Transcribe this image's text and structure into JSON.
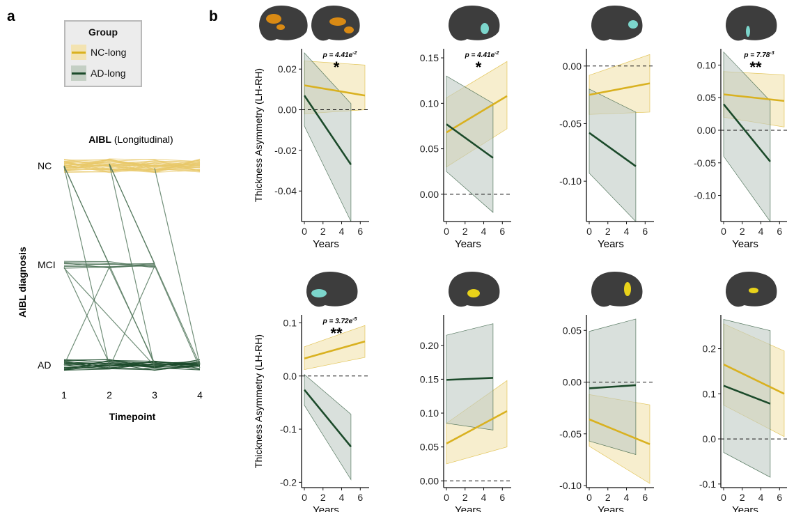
{
  "figure": {
    "panel_a_letter": "a",
    "panel_b_letter": "b"
  },
  "legend": {
    "title": "Group",
    "items": [
      {
        "label": "NC-long",
        "color": "#d9b120",
        "band": "#f3e3b1"
      },
      {
        "label": "AD-long",
        "color": "#1b4a2a",
        "band": "#c4cfc4"
      }
    ]
  },
  "colors": {
    "nc_line": "#d9b120",
    "nc_band": "#f2e2ae",
    "ad_line": "#1b4a2a",
    "ad_band": "#bfcbc4",
    "spaghetti_nc": "#e8c86a",
    "spaghetti_ad": "#4d7358",
    "brain": "#3d3d3d",
    "roi_orange": "#d98a14",
    "roi_cyan": "#7cd6cc",
    "roi_yellow": "#e8d21a"
  },
  "chart_data": [
    {
      "id": "a",
      "type": "line",
      "title": "AIBL",
      "title_suffix": "(Longitudinal)",
      "xlabel": "Timepoint",
      "ylabel": "AIBL diagnosis",
      "x_ticks": [
        "1",
        "2",
        "3",
        "4"
      ],
      "y_categories": [
        "NC",
        "MCI",
        "AD"
      ],
      "transitions": [
        {
          "from": [
            1,
            "NC"
          ],
          "to": [
            2,
            "AD"
          ]
        },
        {
          "from": [
            1,
            "NC"
          ],
          "to": [
            2,
            "MCI"
          ]
        },
        {
          "from": [
            1,
            "NC"
          ],
          "to": [
            3,
            "AD"
          ]
        },
        {
          "from": [
            2,
            "NC"
          ],
          "to": [
            3,
            "AD"
          ]
        },
        {
          "from": [
            2,
            "NC"
          ],
          "to": [
            3,
            "MCI"
          ]
        },
        {
          "from": [
            2,
            "NC"
          ],
          "to": [
            4,
            "AD"
          ]
        },
        {
          "from": [
            3,
            "NC"
          ],
          "to": [
            4,
            "AD"
          ]
        },
        {
          "from": [
            1,
            "MCI"
          ],
          "to": [
            2,
            "AD"
          ]
        },
        {
          "from": [
            1,
            "MCI"
          ],
          "to": [
            3,
            "AD"
          ]
        },
        {
          "from": [
            1,
            "MCI"
          ],
          "to": [
            3,
            "MCI"
          ]
        },
        {
          "from": [
            2,
            "MCI"
          ],
          "to": [
            3,
            "AD"
          ]
        },
        {
          "from": [
            3,
            "MCI"
          ],
          "to": [
            4,
            "AD"
          ]
        },
        {
          "from": [
            1,
            "AD"
          ],
          "to": [
            2,
            "MCI"
          ]
        },
        {
          "from": [
            2,
            "AD"
          ],
          "to": [
            3,
            "MCI"
          ]
        }
      ]
    },
    {
      "id": "b1",
      "type": "line",
      "row": 0,
      "col": 0,
      "region": "orange",
      "ylabel": "Thickness Asymmetry (LH-RH)",
      "xlabel": "Years",
      "ylim": [
        -0.055,
        0.03
      ],
      "yticks": [
        -0.04,
        -0.02,
        0.0,
        0.02
      ],
      "ytick_labels": [
        "-0.04",
        "-0.02",
        "0.00",
        "0.02"
      ],
      "xlim": [
        -0.3,
        6.8
      ],
      "xticks": [
        0,
        2,
        4,
        6
      ],
      "pvalue": "p = 4.41e",
      "pvalue_exp": "-2",
      "stars": "*",
      "series": [
        {
          "group": "NC-long",
          "x": [
            0,
            6.5
          ],
          "y": [
            0.012,
            0.007
          ],
          "lower": [
            -0.002,
            0.0
          ],
          "upper": [
            0.024,
            0.022
          ]
        },
        {
          "group": "AD-long",
          "x": [
            0,
            5
          ],
          "y": [
            0.007,
            -0.027
          ],
          "lower": [
            -0.008,
            -0.055
          ],
          "upper": [
            0.028,
            0.003
          ]
        }
      ]
    },
    {
      "id": "b2",
      "type": "line",
      "row": 0,
      "col": 1,
      "region": "cyan",
      "ylabel": "",
      "xlabel": "Years",
      "ylim": [
        -0.03,
        0.16
      ],
      "yticks": [
        0.0,
        0.05,
        0.1,
        0.15
      ],
      "ytick_labels": [
        "0.00",
        "0.05",
        "0.10",
        "0.15"
      ],
      "xlim": [
        -0.3,
        6.8
      ],
      "xticks": [
        0,
        2,
        4,
        6
      ],
      "pvalue": "p = 4.41e",
      "pvalue_exp": "-2",
      "stars": "*",
      "series": [
        {
          "group": "NC-long",
          "x": [
            0,
            6.5
          ],
          "y": [
            0.068,
            0.108
          ],
          "lower": [
            0.03,
            0.072
          ],
          "upper": [
            0.106,
            0.146
          ]
        },
        {
          "group": "AD-long",
          "x": [
            0,
            5
          ],
          "y": [
            0.077,
            0.04
          ],
          "lower": [
            0.025,
            -0.02
          ],
          "upper": [
            0.13,
            0.1
          ]
        }
      ]
    },
    {
      "id": "b3",
      "type": "line",
      "row": 0,
      "col": 2,
      "region": "cyan",
      "ylabel": "",
      "xlabel": "Years",
      "ylim": [
        -0.135,
        0.015
      ],
      "yticks": [
        -0.1,
        -0.05,
        0.0
      ],
      "ytick_labels": [
        "-0.10",
        "-0.05",
        "0.00"
      ],
      "xlim": [
        -0.3,
        6.8
      ],
      "xticks": [
        0,
        2,
        4,
        6
      ],
      "pvalue": "",
      "pvalue_exp": "",
      "stars": "",
      "series": [
        {
          "group": "NC-long",
          "x": [
            0,
            6.5
          ],
          "y": [
            -0.025,
            -0.015
          ],
          "lower": [
            -0.042,
            -0.04
          ],
          "upper": [
            -0.008,
            0.01
          ]
        },
        {
          "group": "AD-long",
          "x": [
            0,
            5
          ],
          "y": [
            -0.058,
            -0.087
          ],
          "lower": [
            -0.093,
            -0.135
          ],
          "upper": [
            -0.02,
            -0.04
          ]
        }
      ]
    },
    {
      "id": "b4",
      "type": "line",
      "row": 0,
      "col": 3,
      "region": "cyan",
      "ylabel": "",
      "xlabel": "Years",
      "ylim": [
        -0.14,
        0.125
      ],
      "yticks": [
        -0.1,
        -0.05,
        0.0,
        0.05,
        0.1
      ],
      "ytick_labels": [
        "-0.10",
        "-0.05",
        "0.00",
        "0.05",
        "0.10"
      ],
      "xlim": [
        -0.3,
        6.8
      ],
      "xticks": [
        0,
        2,
        4,
        6
      ],
      "pvalue": "p = 7.78",
      "pvalue_exp": "-3",
      "stars": "**",
      "series": [
        {
          "group": "NC-long",
          "x": [
            0,
            6.5
          ],
          "y": [
            0.055,
            0.045
          ],
          "lower": [
            0.02,
            0.005
          ],
          "upper": [
            0.09,
            0.085
          ]
        },
        {
          "group": "AD-long",
          "x": [
            0,
            5
          ],
          "y": [
            0.04,
            -0.048
          ],
          "lower": [
            -0.04,
            -0.14
          ],
          "upper": [
            0.12,
            0.045
          ]
        }
      ]
    },
    {
      "id": "b5",
      "type": "line",
      "row": 1,
      "col": 0,
      "region": "cyan",
      "ylabel": "Thickness Asymmetry (LH-RH)",
      "xlabel": "Years",
      "ylim": [
        -0.21,
        0.115
      ],
      "yticks": [
        -0.2,
        -0.1,
        0.0,
        0.1
      ],
      "ytick_labels": [
        "-0.2",
        "-0.1",
        "0.0",
        "0.1"
      ],
      "xlim": [
        -0.3,
        6.8
      ],
      "xticks": [
        0,
        2,
        4,
        6
      ],
      "pvalue": "p = 3.72e",
      "pvalue_exp": "-5",
      "stars": "**",
      "series": [
        {
          "group": "NC-long",
          "x": [
            0,
            6.5
          ],
          "y": [
            0.033,
            0.065
          ],
          "lower": [
            0.012,
            0.035
          ],
          "upper": [
            0.055,
            0.095
          ]
        },
        {
          "group": "AD-long",
          "x": [
            0,
            5
          ],
          "y": [
            -0.026,
            -0.133
          ],
          "lower": [
            -0.055,
            -0.195
          ],
          "upper": [
            0.003,
            -0.072
          ]
        }
      ]
    },
    {
      "id": "b6",
      "type": "line",
      "row": 1,
      "col": 1,
      "region": "yellow",
      "ylabel": "",
      "xlabel": "Years",
      "ylim": [
        -0.01,
        0.245
      ],
      "yticks": [
        0.0,
        0.05,
        0.1,
        0.15,
        0.2
      ],
      "ytick_labels": [
        "0.00",
        "0.05",
        "0.10",
        "0.15",
        "0.20"
      ],
      "xlim": [
        -0.3,
        6.8
      ],
      "xticks": [
        0,
        2,
        4,
        6
      ],
      "pvalue": "",
      "pvalue_exp": "",
      "stars": "",
      "series": [
        {
          "group": "NC-long",
          "x": [
            0,
            6.5
          ],
          "y": [
            0.055,
            0.103
          ],
          "lower": [
            0.025,
            0.05
          ],
          "upper": [
            0.085,
            0.148
          ]
        },
        {
          "group": "AD-long",
          "x": [
            0,
            5
          ],
          "y": [
            0.149,
            0.152
          ],
          "lower": [
            0.085,
            0.075
          ],
          "upper": [
            0.215,
            0.232
          ]
        }
      ]
    },
    {
      "id": "b7",
      "type": "line",
      "row": 1,
      "col": 2,
      "region": "yellow",
      "ylabel": "",
      "xlabel": "Years",
      "ylim": [
        -0.102,
        0.065
      ],
      "yticks": [
        -0.1,
        -0.05,
        0.0,
        0.05
      ],
      "ytick_labels": [
        "-0.10",
        "-0.05",
        "0.00",
        "0.05"
      ],
      "xlim": [
        -0.3,
        6.8
      ],
      "xticks": [
        0,
        2,
        4,
        6
      ],
      "pvalue": "",
      "pvalue_exp": "",
      "stars": "",
      "series": [
        {
          "group": "NC-long",
          "x": [
            0,
            6.5
          ],
          "y": [
            -0.036,
            -0.06
          ],
          "lower": [
            -0.062,
            -0.098
          ],
          "upper": [
            -0.012,
            -0.022
          ]
        },
        {
          "group": "AD-long",
          "x": [
            0,
            5
          ],
          "y": [
            -0.006,
            -0.003
          ],
          "lower": [
            -0.057,
            -0.07
          ],
          "upper": [
            0.049,
            0.061
          ]
        }
      ]
    },
    {
      "id": "b8",
      "type": "line",
      "row": 1,
      "col": 3,
      "region": "yellow",
      "ylabel": "",
      "xlabel": "Years",
      "ylim": [
        -0.108,
        0.275
      ],
      "yticks": [
        -0.1,
        0.0,
        0.1,
        0.2
      ],
      "ytick_labels": [
        "-0.1",
        "0.0",
        "0.1",
        "0.2"
      ],
      "xlim": [
        -0.3,
        6.8
      ],
      "xticks": [
        0,
        2,
        4,
        6
      ],
      "pvalue": "",
      "pvalue_exp": "",
      "stars": "",
      "series": [
        {
          "group": "NC-long",
          "x": [
            0,
            6.5
          ],
          "y": [
            0.165,
            0.1
          ],
          "lower": [
            0.075,
            0.005
          ],
          "upper": [
            0.255,
            0.195
          ]
        },
        {
          "group": "AD-long",
          "x": [
            0,
            5
          ],
          "y": [
            0.118,
            0.078
          ],
          "lower": [
            -0.03,
            -0.085
          ],
          "upper": [
            0.265,
            0.24
          ]
        }
      ]
    }
  ]
}
